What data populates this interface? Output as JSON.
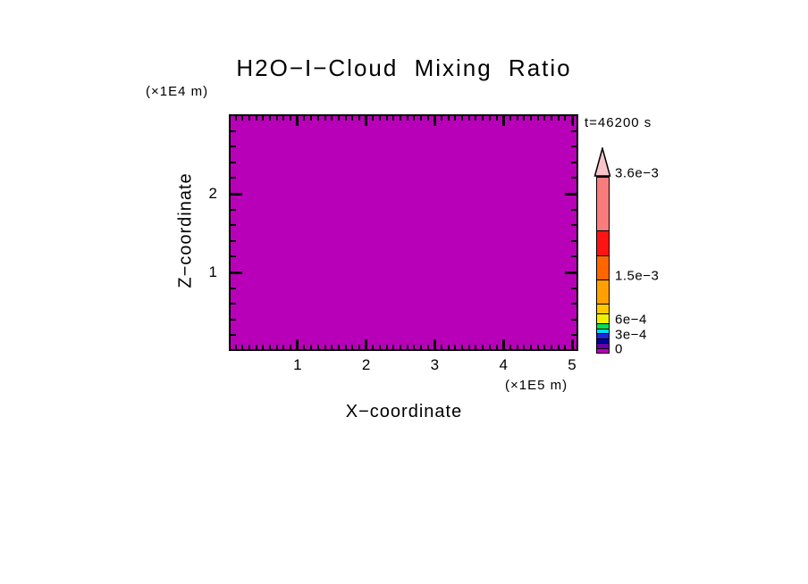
{
  "title": "H2O−I−Cloud Mixing Ratio",
  "time_label": "t=46200 s",
  "plot_fill": "#b800b8",
  "axes": {
    "x": {
      "label": "X−coordinate",
      "unit": "(×1E5 m)",
      "major_ticks": [
        "1",
        "2",
        "3",
        "4",
        "5"
      ],
      "minor_step": 0.1
    },
    "z": {
      "label": "Z−coordinate",
      "unit": "(×1E4 m)",
      "major_ticks": [
        "1",
        "2"
      ],
      "minor_step": 0.2
    }
  },
  "colorbar": {
    "vmax": 0.0036,
    "ticks": [
      {
        "label": "3.6e−3",
        "value": 0.0036
      },
      {
        "label": "1.5e−3",
        "value": 0.0015
      },
      {
        "label": "6e−4",
        "value": 0.0006
      },
      {
        "label": "3e−4",
        "value": 0.0003
      },
      {
        "label": "0",
        "value": 0
      }
    ],
    "segments": [
      {
        "from": 0,
        "to": 0.0001,
        "color": "#b800b8"
      },
      {
        "from": 0.0001,
        "to": 0.0002,
        "color": "#6a00aa"
      },
      {
        "from": 0.0002,
        "to": 0.0003,
        "color": "#0000a0"
      },
      {
        "from": 0.0003,
        "to": 0.0004,
        "color": "#2424e0"
      },
      {
        "from": 0.0004,
        "to": 0.0005,
        "color": "#00dcff"
      },
      {
        "from": 0.0005,
        "to": 0.0006,
        "color": "#00e055"
      },
      {
        "from": 0.0006,
        "to": 0.0008,
        "color": "#f0f000"
      },
      {
        "from": 0.0008,
        "to": 0.001,
        "color": "#ffc800"
      },
      {
        "from": 0.001,
        "to": 0.0015,
        "color": "#ffa000"
      },
      {
        "from": 0.0015,
        "to": 0.002,
        "color": "#ff6600"
      },
      {
        "from": 0.002,
        "to": 0.0025,
        "color": "#ff1414"
      },
      {
        "from": 0.0025,
        "to": 0.0036,
        "color": "#f87c7c"
      }
    ],
    "arrow_color": "#f8c4c8"
  },
  "chart_data": {
    "type": "heatmap",
    "title": "H2O−I−Cloud Mixing Ratio",
    "xlabel": "X−coordinate",
    "ylabel": "Z−coordinate",
    "x_unit": "(×1E5 m)",
    "y_unit": "(×1E4 m)",
    "x_ticks": [
      1,
      2,
      3,
      4,
      5
    ],
    "y_ticks": [
      1,
      2
    ],
    "xlim": [
      0,
      5.1
    ],
    "ylim": [
      0,
      3.0
    ],
    "time_annotation": "t=46200 s",
    "field": "uniform",
    "field_description": "entire domain filled with lowest color bin (magenta), mixing ratio between 0 and 1e-4",
    "colorbar_labeled_levels": [
      0,
      0.0003,
      0.0006,
      0.0015,
      0.0036
    ],
    "colorbar_levels_estimated": [
      0,
      0.0001,
      0.0002,
      0.0003,
      0.0004,
      0.0005,
      0.0006,
      0.0008,
      0.001,
      0.0015,
      0.002,
      0.0025,
      0.0036
    ],
    "colorbar_colors_bottom_to_top": [
      "#b800b8",
      "#6a00aa",
      "#0000a0",
      "#2424e0",
      "#00dcff",
      "#00e055",
      "#f0f000",
      "#ffc800",
      "#ffa000",
      "#ff6600",
      "#ff1414",
      "#f87c7c"
    ],
    "legend_position": "right",
    "grid": false
  }
}
